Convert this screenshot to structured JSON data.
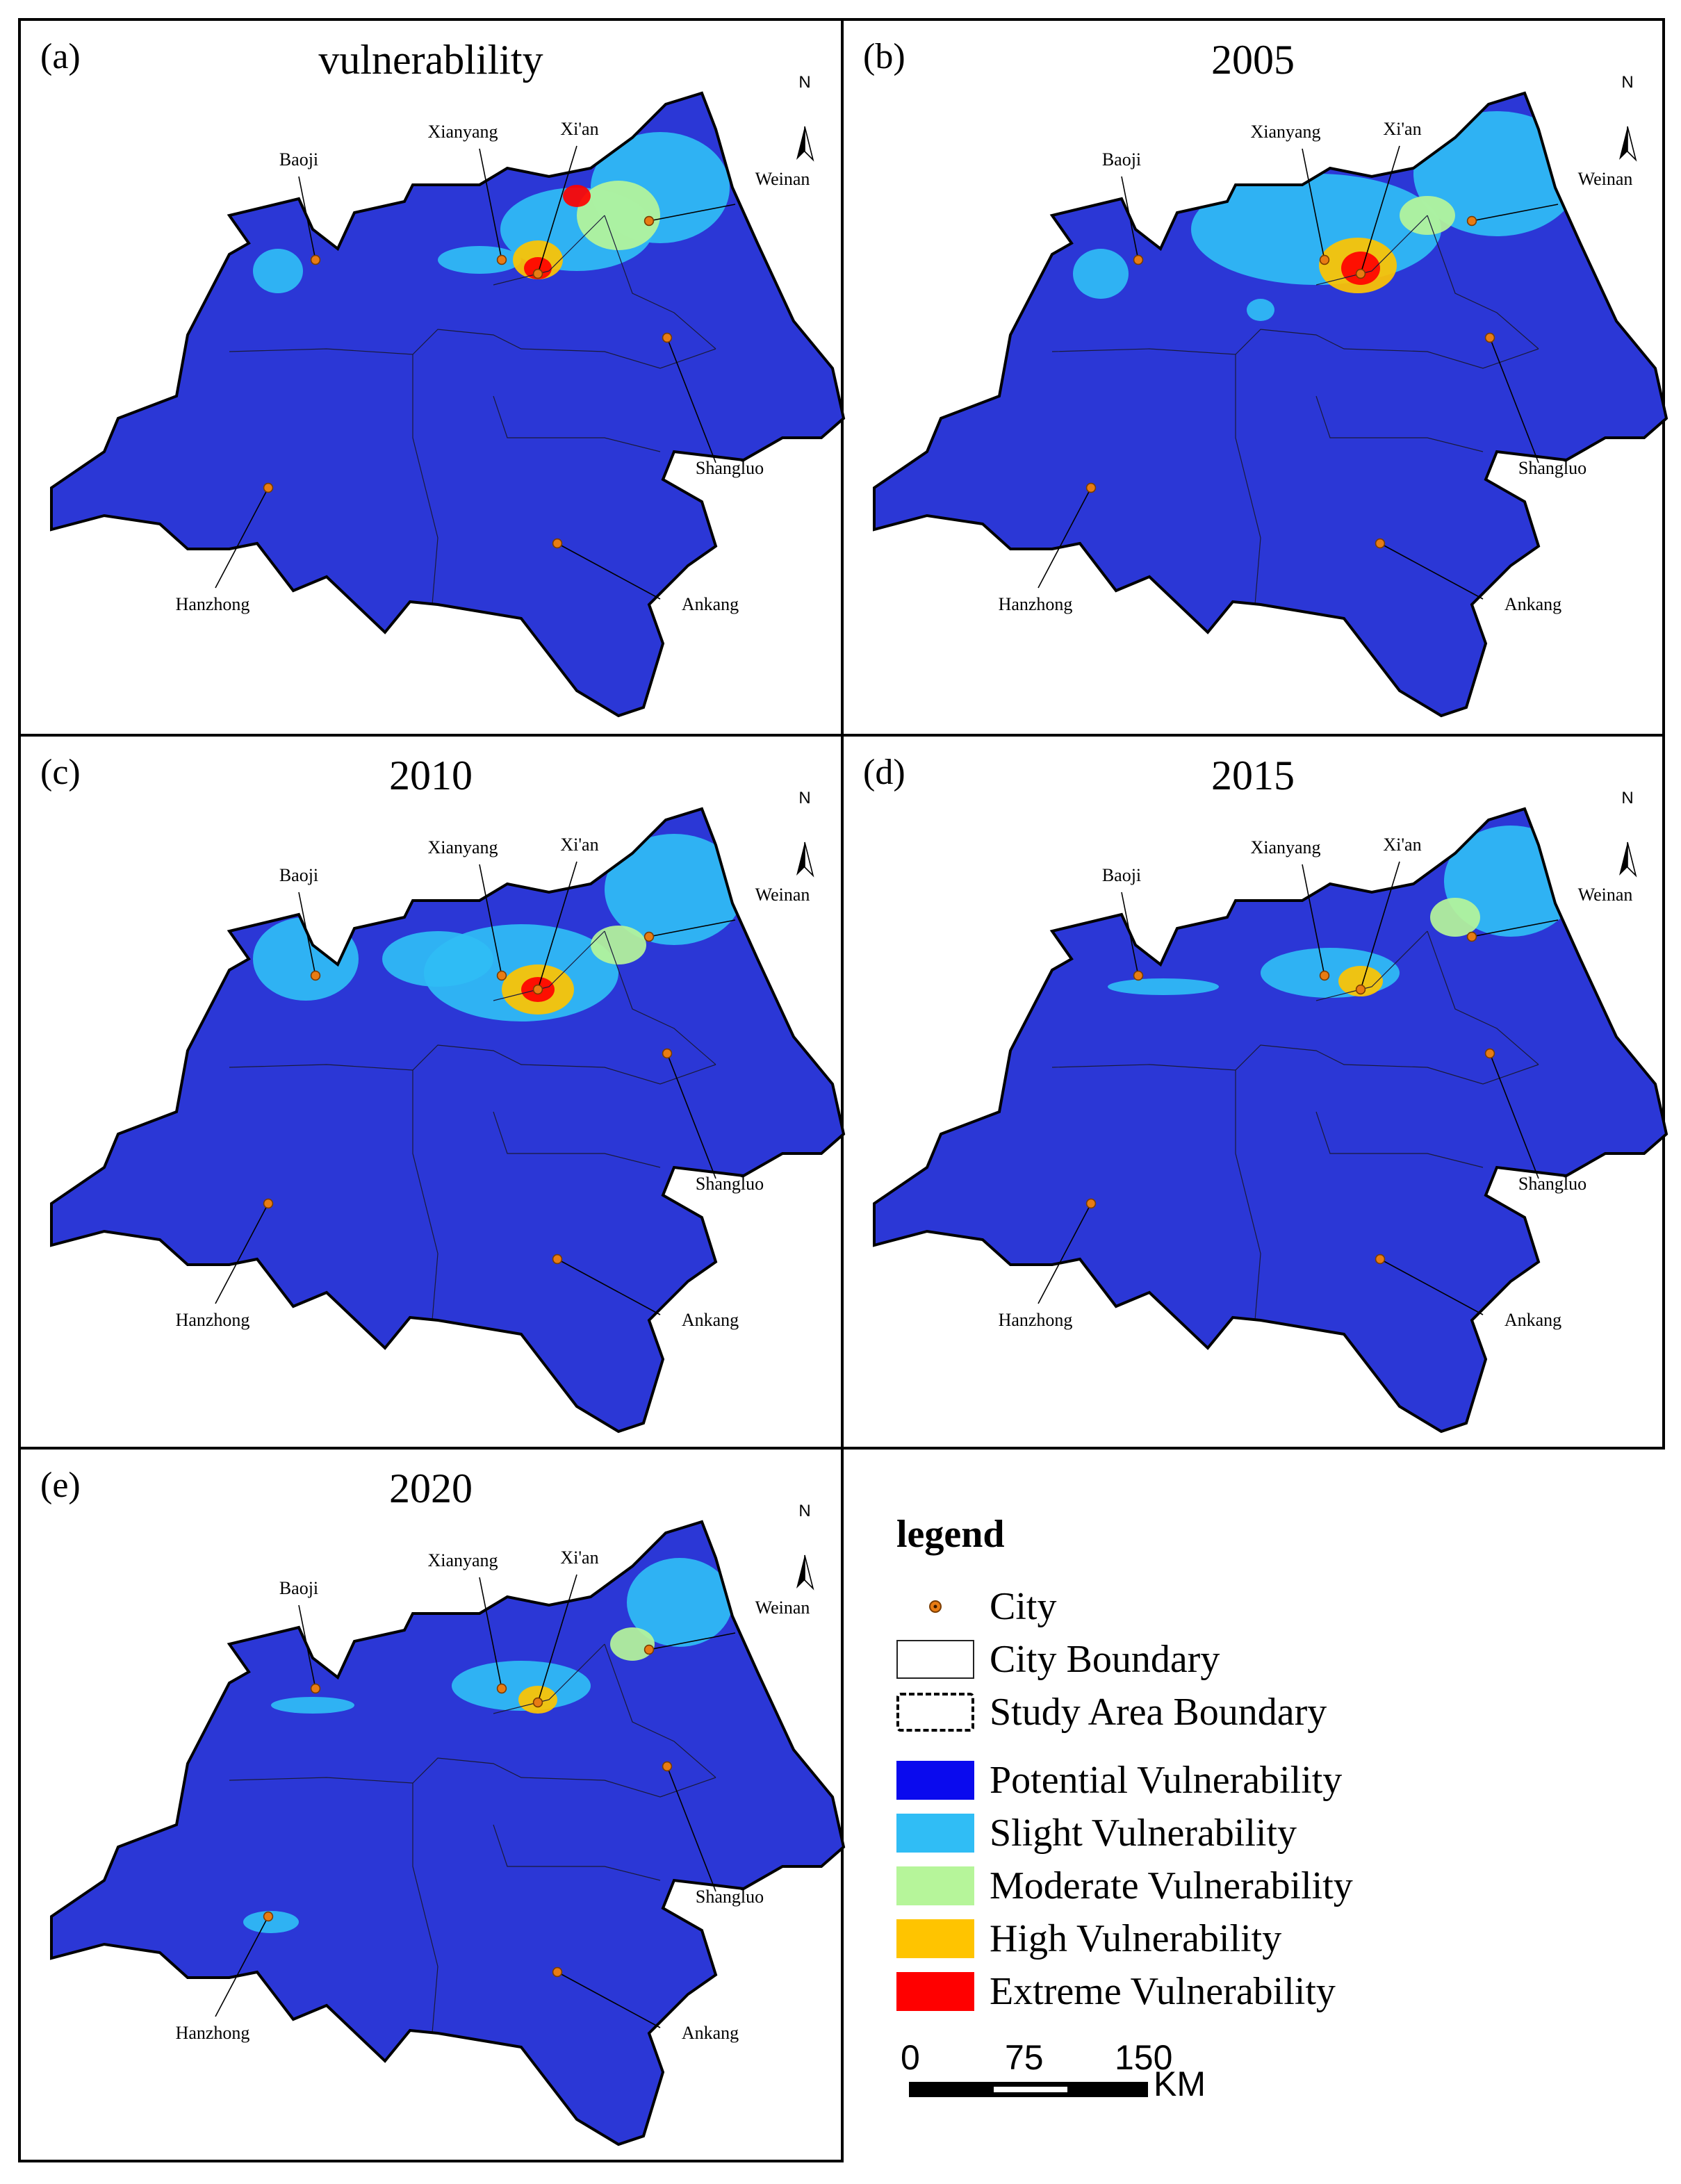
{
  "panels": [
    {
      "label": "(a)",
      "title": "vulnerablility"
    },
    {
      "label": "(b)",
      "title": "2005"
    },
    {
      "label": "(c)",
      "title": "2010"
    },
    {
      "label": "(d)",
      "title": "2015"
    },
    {
      "label": "(e)",
      "title": "2020"
    }
  ],
  "cities": [
    "Baoji",
    "Xianyang",
    "Xi'an",
    "Weinan",
    "Shangluo",
    "Hanzhong",
    "Ankang"
  ],
  "north_label": "N",
  "legend": {
    "title": "legend",
    "city": "City",
    "city_boundary": "City Boundary",
    "study_area_boundary": "Study Area Boundary",
    "classes": [
      {
        "label": "Potential Vulnerability",
        "color": "#0a0aee"
      },
      {
        "label": "Slight Vulnerability",
        "color": "#30bdf5"
      },
      {
        "label": "Moderate Vulnerability",
        "color": "#b6f59a"
      },
      {
        "label": "High Vulnerability",
        "color": "#ffc400"
      },
      {
        "label": "Extreme Vulnerability",
        "color": "#ff0000"
      }
    ]
  },
  "scale_bar": {
    "ticks": [
      "0",
      "75",
      "150"
    ],
    "unit": "KM"
  },
  "colors": {
    "map_fill": "#2b37d6",
    "city_dot": "#e87c13"
  }
}
